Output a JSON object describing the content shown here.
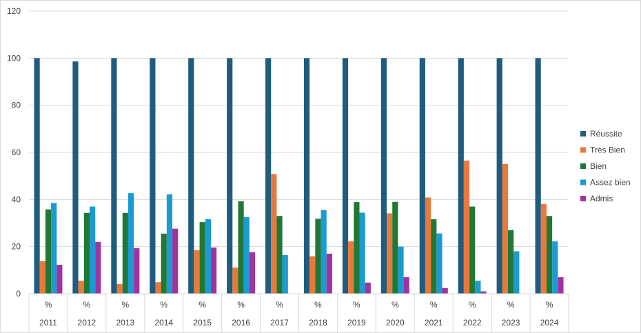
{
  "chart_data": {
    "type": "bar",
    "ylim": [
      0,
      120
    ],
    "yticks": [
      0,
      20,
      40,
      60,
      80,
      100,
      120
    ],
    "grid": true,
    "legend_position": "right",
    "categories": [
      {
        "top": "%",
        "bottom": "2011"
      },
      {
        "top": "%",
        "bottom": "2012"
      },
      {
        "top": "%",
        "bottom": "2013"
      },
      {
        "top": "%",
        "bottom": "2014"
      },
      {
        "top": "%",
        "bottom": "2015"
      },
      {
        "top": "%",
        "bottom": "2016"
      },
      {
        "top": "%",
        "bottom": "2017"
      },
      {
        "top": "%",
        "bottom": "2018"
      },
      {
        "top": "%",
        "bottom": "2019"
      },
      {
        "top": "%",
        "bottom": "2020"
      },
      {
        "top": "%",
        "bottom": "2021"
      },
      {
        "top": "%",
        "bottom": "2022"
      },
      {
        "top": "%",
        "bottom": "2023"
      },
      {
        "top": "%",
        "bottom": "2024"
      }
    ],
    "series": [
      {
        "name": "Réussite",
        "color": "#1f5c7e",
        "values": [
          100,
          98.6,
          100,
          100,
          100,
          100,
          100,
          100,
          100,
          100,
          100,
          100,
          100,
          100
        ]
      },
      {
        "name": "Très Bien",
        "color": "#e8793a",
        "values": [
          13.8,
          5.5,
          4.1,
          4.9,
          18.5,
          11.1,
          50.8,
          15.9,
          22.2,
          34.1,
          40.8,
          56.5,
          55.1,
          38.1
        ]
      },
      {
        "name": "Bien",
        "color": "#217834",
        "values": [
          35.8,
          34.3,
          34.3,
          25.5,
          30.4,
          39.2,
          33,
          31.8,
          38.9,
          39,
          31.6,
          37,
          27,
          33
        ]
      },
      {
        "name": "Assez bien",
        "color": "#1b9bd2",
        "values": [
          38.5,
          37,
          42.7,
          42.2,
          31.6,
          32.5,
          16.4,
          35.5,
          34.4,
          20,
          25.6,
          5.5,
          18,
          22.2
        ]
      },
      {
        "name": "Admis",
        "color": "#a033a0",
        "values": [
          12.3,
          22,
          19.3,
          27.6,
          19.6,
          17.6,
          0,
          17,
          4.7,
          7,
          2.4,
          1,
          0,
          7
        ]
      }
    ]
  }
}
